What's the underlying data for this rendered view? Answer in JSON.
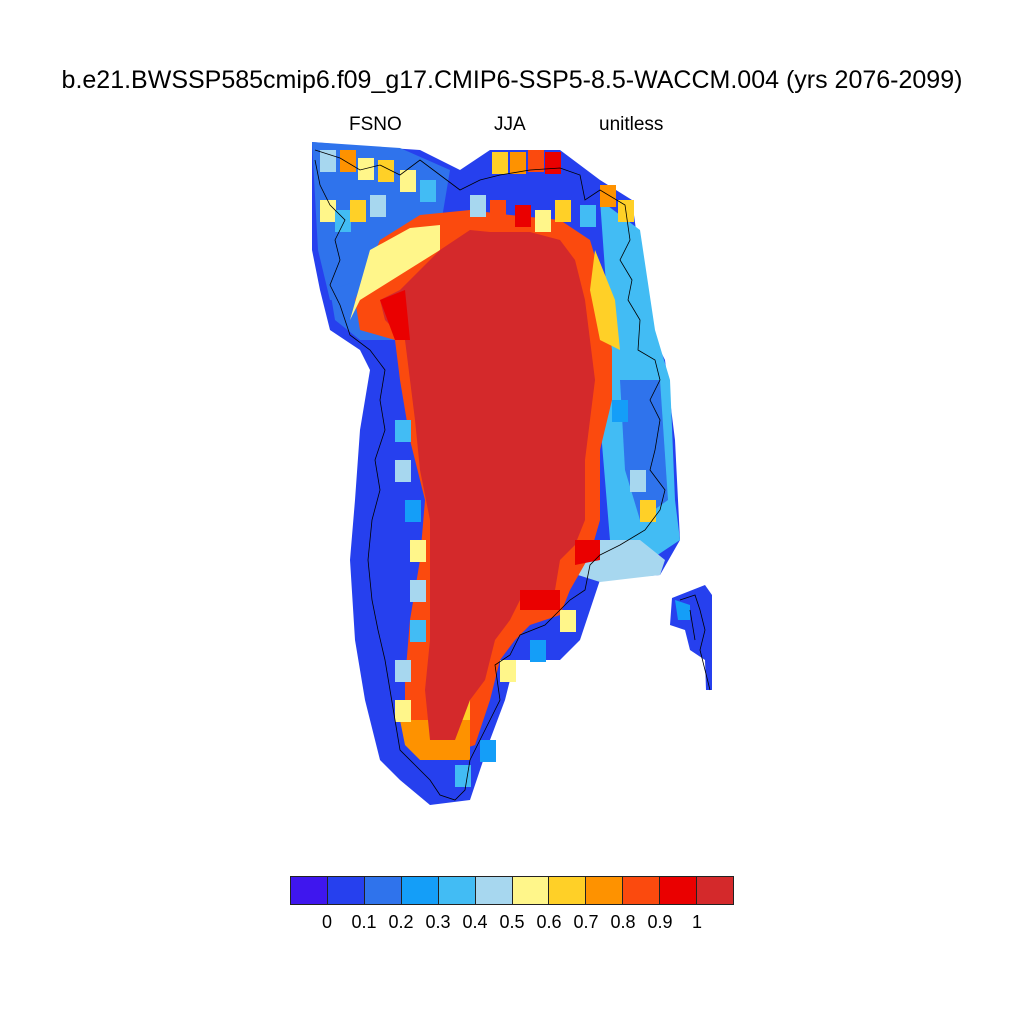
{
  "title": "b.e21.BWSSP585cmip6.f09_g17.CMIP6-SSP5-8.5-WACCM.004 (yrs 2076-2099)",
  "subtitle": {
    "left": "FSNO",
    "center": "JJA",
    "right": "unitless"
  },
  "colorbar": {
    "colors": [
      "#3f16ee",
      "#2640ee",
      "#2f73ec",
      "#149ef8",
      "#42bcf4",
      "#a7d7ef",
      "#fff68a",
      "#ffd027",
      "#fe9200",
      "#fb4a0e",
      "#ea0000",
      "#d4292b"
    ],
    "labels": [
      "0",
      "0.1",
      "0.2",
      "0.3",
      "0.4",
      "0.5",
      "0.6",
      "0.7",
      "0.8",
      "0.9",
      "1"
    ]
  },
  "map_data": {
    "variable": "FSNO",
    "season": "JJA",
    "units": "unitless",
    "region": "Greenland",
    "interior_value": 1.0,
    "coast_value_range": [
      0.0,
      0.95
    ]
  }
}
